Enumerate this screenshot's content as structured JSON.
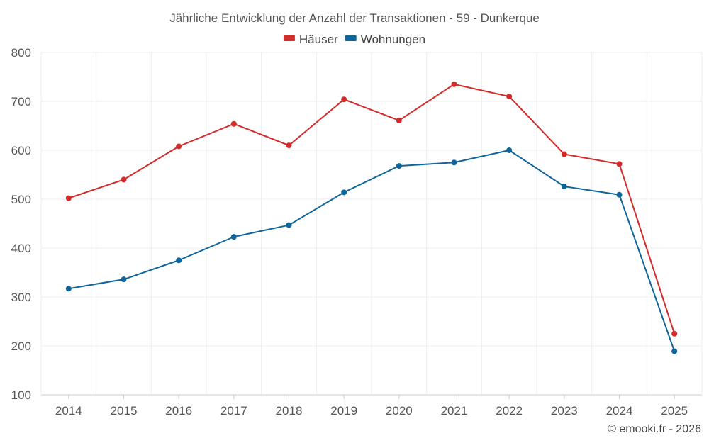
{
  "chart_data": {
    "type": "line",
    "title": "Jährliche Entwicklung der Anzahl der Transaktionen - 59 - Dunkerque",
    "xlabel": "",
    "ylabel": "",
    "categories": [
      "2014",
      "2015",
      "2016",
      "2017",
      "2018",
      "2019",
      "2020",
      "2021",
      "2022",
      "2023",
      "2024",
      "2025"
    ],
    "ylim": [
      100,
      800
    ],
    "yticks": [
      100,
      200,
      300,
      400,
      500,
      600,
      700,
      800
    ],
    "grid": true,
    "legend_position": "top-center",
    "series": [
      {
        "name": "Häuser",
        "color": "#d32a2a",
        "values": [
          502,
          540,
          608,
          654,
          610,
          704,
          661,
          735,
          710,
          592,
          572,
          225
        ]
      },
      {
        "name": "Wohnungen",
        "color": "#0e659a",
        "values": [
          317,
          336,
          375,
          423,
          447,
          514,
          568,
          575,
          600,
          526,
          509,
          189
        ]
      }
    ]
  },
  "credit": "© emooki.fr - 2026"
}
